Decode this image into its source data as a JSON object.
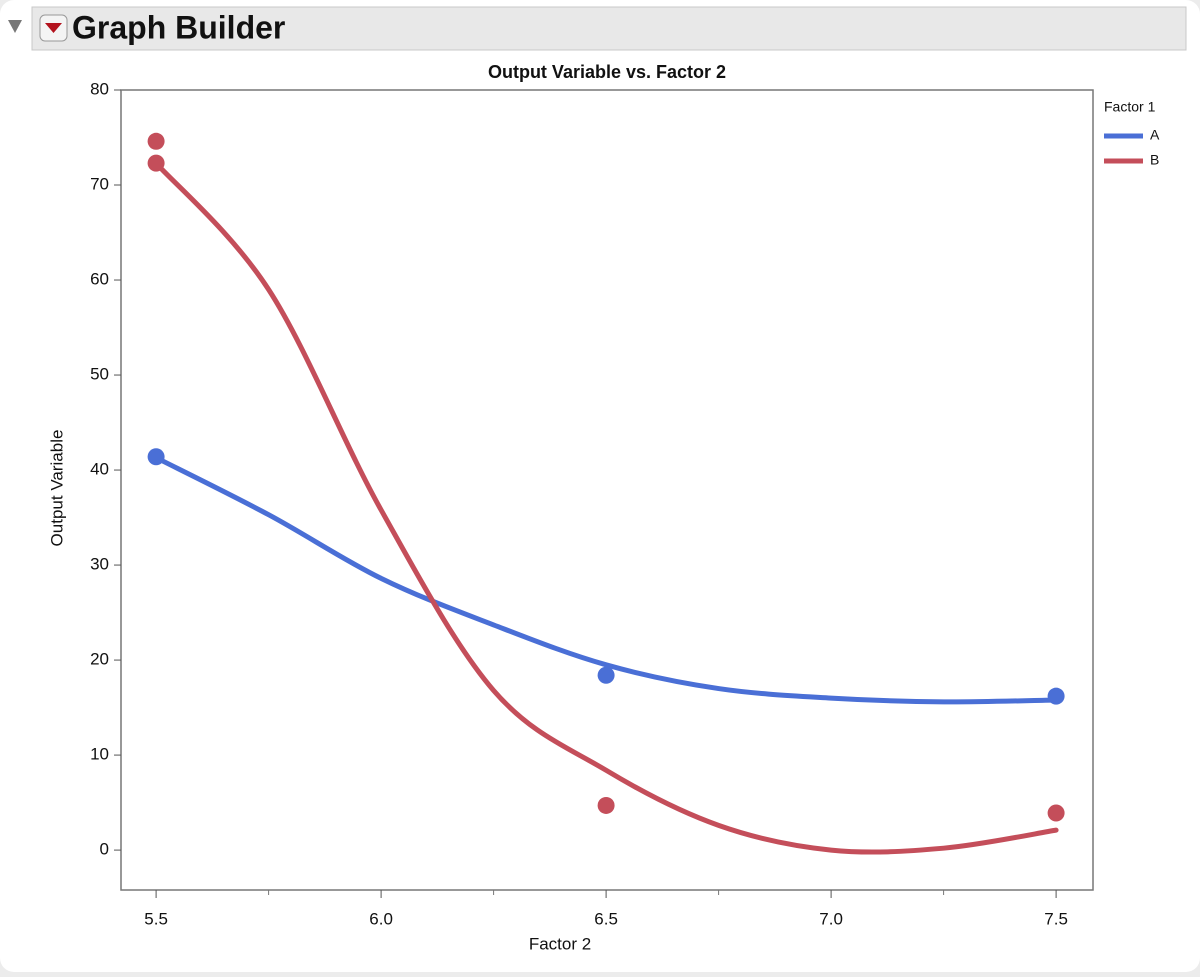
{
  "header": {
    "title": "Graph Builder"
  },
  "chart_data": {
    "type": "scatter",
    "title": "Output Variable vs. Factor 2",
    "x_label": "Factor 2",
    "y_label": "Output Variable",
    "legend_title": "Factor 1",
    "legend_position": "right",
    "xlim": [
      5.422,
      7.582
    ],
    "ylim": [
      -4.2,
      80
    ],
    "xticks": [
      5.5,
      {
        "value": 6,
        "label": "6.0"
      },
      6.5,
      {
        "value": 7,
        "label": "7.0"
      },
      7.5
    ],
    "xminorticks": [
      5.75,
      6.25,
      6.75,
      7.25
    ],
    "yticks": [
      0,
      10,
      20,
      30,
      40,
      50,
      60,
      70,
      80
    ],
    "series": [
      {
        "name": "A",
        "color": "#4a6fd6",
        "x": [
          5.5,
          6.5,
          7.5
        ],
        "values": [
          41.4,
          18.4,
          16.2
        ],
        "fit_x": [
          5.5,
          5.75,
          6.0,
          6.25,
          6.5,
          6.75,
          7.0,
          7.25,
          7.5
        ],
        "fit_values": [
          41.3,
          35.3,
          28.6,
          23.7,
          19.5,
          17.0,
          16.0,
          15.6,
          15.8
        ]
      },
      {
        "name": "B",
        "color": "#c44e5a",
        "x": [
          5.5,
          5.5,
          6.5,
          7.5
        ],
        "values": [
          74.6,
          72.3,
          4.7,
          3.9
        ],
        "fit_x": [
          5.5,
          5.75,
          6.0,
          6.25,
          6.5,
          6.75,
          7.0,
          7.25,
          7.5
        ],
        "fit_values": [
          72.3,
          59.0,
          35.8,
          16.8,
          8.4,
          2.6,
          0.0,
          0.2,
          2.1
        ]
      }
    ]
  }
}
